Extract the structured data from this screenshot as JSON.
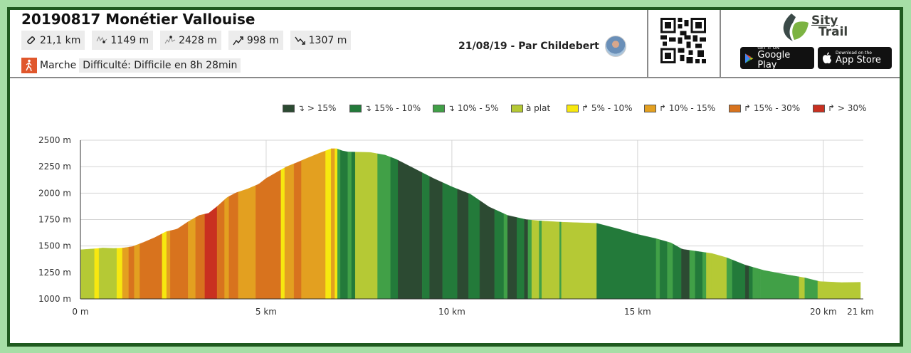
{
  "header": {
    "title": "20190817 Monétier Vallouise",
    "stats": [
      {
        "icon": "distance-icon",
        "value": "21,1 km"
      },
      {
        "icon": "min-altitude-icon",
        "value": "1149 m"
      },
      {
        "icon": "max-altitude-icon",
        "value": "2428 m"
      },
      {
        "icon": "elevation-gain-icon",
        "value": "998 m"
      },
      {
        "icon": "elevation-loss-icon",
        "value": "1307 m"
      }
    ],
    "activity": "Marche",
    "difficulty": "Difficulté: Difficile en 8h 28min",
    "author_line": "21/08/19 - Par Childebert",
    "brand": {
      "line1": "Sity",
      "line2": "Trail"
    },
    "google_play": {
      "small": "GET IT ON",
      "big": "Google Play"
    },
    "app_store": {
      "small": "Download on the",
      "big": "App Store"
    }
  },
  "chart_data": {
    "type": "area",
    "title": "",
    "xlabel": "",
    "ylabel": "",
    "xlim_km": [
      0,
      21
    ],
    "ylim": [
      1000,
      2500
    ],
    "grid": true,
    "legend_position": "top-right",
    "x_ticks": [
      {
        "value": 0,
        "label": "0 m"
      },
      {
        "value": 5,
        "label": "5 km"
      },
      {
        "value": 10,
        "label": "10 km"
      },
      {
        "value": 15,
        "label": "15 km"
      },
      {
        "value": 20,
        "label": "20 km"
      },
      {
        "value": 21,
        "label": "21 km"
      }
    ],
    "y_ticks": [
      {
        "value": 1000,
        "label": "1000 m"
      },
      {
        "value": 1250,
        "label": "1250 m"
      },
      {
        "value": 1500,
        "label": "1500 m"
      },
      {
        "value": 1750,
        "label": "1750 m"
      },
      {
        "value": 2000,
        "label": "2000 m"
      },
      {
        "value": 2250,
        "label": "2250 m"
      },
      {
        "value": 2500,
        "label": "2500 m"
      }
    ],
    "legend": [
      {
        "key": "d15",
        "label": "↴ > 15%",
        "color": "#2c4a32"
      },
      {
        "key": "d10",
        "label": "↴ 15% - 10%",
        "color": "#237a3a"
      },
      {
        "key": "d5",
        "label": "↴ 10% - 5%",
        "color": "#41a047"
      },
      {
        "key": "flat",
        "label": "à plat",
        "color": "#b5c935"
      },
      {
        "key": "u5",
        "label": "↱ 5% - 10%",
        "color": "#f7e80f"
      },
      {
        "key": "u10",
        "label": "↱ 10% - 15%",
        "color": "#e3a020"
      },
      {
        "key": "u15",
        "label": "↱ 15% - 30%",
        "color": "#d8731e"
      },
      {
        "key": "u30",
        "label": "↱ > 30%",
        "color": "#c93020"
      }
    ],
    "profile": [
      [
        0,
        1465
      ],
      [
        0.4,
        1475
      ],
      [
        0.6,
        1482
      ],
      [
        0.9,
        1478
      ],
      [
        1.15,
        1482
      ],
      [
        1.4,
        1495
      ],
      [
        1.7,
        1535
      ],
      [
        2.0,
        1580
      ],
      [
        2.3,
        1635
      ],
      [
        2.6,
        1660
      ],
      [
        2.9,
        1730
      ],
      [
        3.2,
        1790
      ],
      [
        3.45,
        1810
      ],
      [
        3.7,
        1880
      ],
      [
        3.95,
        1960
      ],
      [
        4.2,
        2005
      ],
      [
        4.5,
        2040
      ],
      [
        4.8,
        2085
      ],
      [
        5.0,
        2140
      ],
      [
        5.3,
        2200
      ],
      [
        5.55,
        2250
      ],
      [
        5.8,
        2285
      ],
      [
        6.1,
        2330
      ],
      [
        6.45,
        2380
      ],
      [
        6.75,
        2420
      ],
      [
        6.9,
        2420
      ],
      [
        7.05,
        2400
      ],
      [
        7.2,
        2390
      ],
      [
        7.8,
        2385
      ],
      [
        8.2,
        2360
      ],
      [
        8.5,
        2320
      ],
      [
        9.0,
        2230
      ],
      [
        9.5,
        2140
      ],
      [
        10.0,
        2060
      ],
      [
        10.5,
        1990
      ],
      [
        11.0,
        1870
      ],
      [
        11.5,
        1790
      ],
      [
        12.0,
        1750
      ],
      [
        12.3,
        1740
      ],
      [
        13.0,
        1725
      ],
      [
        13.9,
        1715
      ],
      [
        14.5,
        1660
      ],
      [
        15.0,
        1610
      ],
      [
        15.5,
        1570
      ],
      [
        15.9,
        1530
      ],
      [
        16.2,
        1470
      ],
      [
        16.6,
        1450
      ],
      [
        17.0,
        1430
      ],
      [
        17.4,
        1390
      ],
      [
        17.9,
        1320
      ],
      [
        18.4,
        1270
      ],
      [
        19.0,
        1230
      ],
      [
        19.5,
        1200
      ],
      [
        19.9,
        1165
      ],
      [
        20.5,
        1155
      ],
      [
        21.0,
        1158
      ]
    ],
    "segments": [
      [
        0,
        0.38,
        "flat"
      ],
      [
        0.38,
        0.5,
        "u5"
      ],
      [
        0.5,
        0.98,
        "flat"
      ],
      [
        0.98,
        1.13,
        "u5"
      ],
      [
        1.13,
        1.3,
        "u10"
      ],
      [
        1.3,
        1.45,
        "u15"
      ],
      [
        1.45,
        1.6,
        "u10"
      ],
      [
        1.6,
        2.2,
        "u15"
      ],
      [
        2.2,
        2.32,
        "u5"
      ],
      [
        2.32,
        2.42,
        "u10"
      ],
      [
        2.42,
        2.9,
        "u15"
      ],
      [
        2.9,
        3.1,
        "u10"
      ],
      [
        3.1,
        3.35,
        "u15"
      ],
      [
        3.35,
        3.68,
        "u30"
      ],
      [
        3.68,
        3.88,
        "u15"
      ],
      [
        3.88,
        4.0,
        "u10"
      ],
      [
        4.0,
        4.25,
        "u15"
      ],
      [
        4.25,
        4.72,
        "u10"
      ],
      [
        4.72,
        5.4,
        "u15"
      ],
      [
        5.4,
        5.5,
        "u5"
      ],
      [
        5.5,
        5.75,
        "u10"
      ],
      [
        5.75,
        5.95,
        "u15"
      ],
      [
        5.95,
        6.6,
        "u10"
      ],
      [
        6.6,
        6.75,
        "u5"
      ],
      [
        6.75,
        6.85,
        "u10"
      ],
      [
        6.85,
        6.92,
        "u5"
      ],
      [
        6.92,
        7.0,
        "d5"
      ],
      [
        7.0,
        7.2,
        "d10"
      ],
      [
        7.2,
        7.3,
        "d5"
      ],
      [
        7.3,
        7.4,
        "d10"
      ],
      [
        7.4,
        8.0,
        "flat"
      ],
      [
        8.0,
        8.35,
        "d5"
      ],
      [
        8.35,
        8.55,
        "d10"
      ],
      [
        8.55,
        9.2,
        "d15"
      ],
      [
        9.2,
        9.4,
        "d10"
      ],
      [
        9.4,
        9.75,
        "d15"
      ],
      [
        9.75,
        10.15,
        "d10"
      ],
      [
        10.15,
        10.45,
        "d15"
      ],
      [
        10.45,
        10.75,
        "d10"
      ],
      [
        10.75,
        11.15,
        "d15"
      ],
      [
        11.15,
        11.4,
        "d10"
      ],
      [
        11.4,
        11.5,
        "d5"
      ],
      [
        11.5,
        11.75,
        "d15"
      ],
      [
        11.75,
        11.95,
        "d10"
      ],
      [
        11.95,
        12.05,
        "d15"
      ],
      [
        12.05,
        12.15,
        "d5"
      ],
      [
        12.15,
        12.35,
        "flat"
      ],
      [
        12.35,
        12.42,
        "d5"
      ],
      [
        12.42,
        12.9,
        "flat"
      ],
      [
        12.9,
        12.95,
        "d5"
      ],
      [
        12.95,
        13.9,
        "flat"
      ],
      [
        13.9,
        15.5,
        "d10"
      ],
      [
        15.5,
        15.6,
        "d5"
      ],
      [
        15.6,
        15.8,
        "d10"
      ],
      [
        15.8,
        15.95,
        "d5"
      ],
      [
        15.95,
        16.18,
        "d10"
      ],
      [
        16.18,
        16.4,
        "d15"
      ],
      [
        16.4,
        16.55,
        "d5"
      ],
      [
        16.55,
        16.75,
        "d10"
      ],
      [
        16.75,
        16.85,
        "d5"
      ],
      [
        16.85,
        17.0,
        "flat"
      ],
      [
        17.0,
        17.4,
        "flat"
      ],
      [
        17.4,
        17.55,
        "d5"
      ],
      [
        17.55,
        17.9,
        "d10"
      ],
      [
        17.9,
        18.0,
        "d15"
      ],
      [
        18.0,
        18.1,
        "d10"
      ],
      [
        18.1,
        18.3,
        "d5"
      ],
      [
        18.3,
        19.35,
        "d5"
      ],
      [
        19.35,
        19.5,
        "flat"
      ],
      [
        19.5,
        19.85,
        "d5"
      ],
      [
        19.85,
        21.0,
        "flat"
      ]
    ]
  }
}
